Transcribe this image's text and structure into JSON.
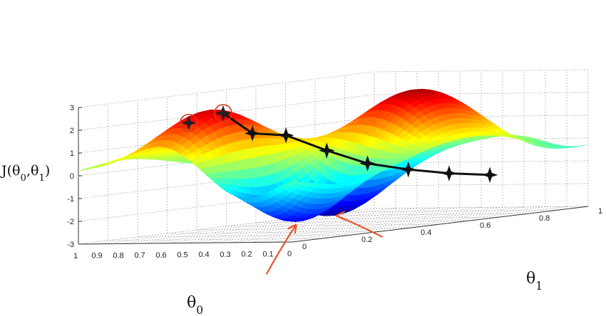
{
  "chart_data": {
    "type": "surface",
    "title": "",
    "zlabel": "J(θ0,θ1)",
    "xlabel": "θ0",
    "ylabel": "θ1",
    "zlim": [
      -3,
      3
    ],
    "z_ticks": [
      "-3",
      "-2",
      "-1",
      "0",
      "1",
      "2",
      "3"
    ],
    "theta0_ticks": [
      "1",
      "0.9",
      "0.8",
      "0.7",
      "0.6",
      "0.5",
      "0.4",
      "0.3",
      "0.2",
      "0.1",
      "0"
    ],
    "theta1_ticks": [
      "0",
      "0.2",
      "0.4",
      "0.6",
      "0.8",
      "1"
    ],
    "grid": true,
    "colormap": "jet",
    "descent_path": {
      "color": "#111111",
      "theta0": [
        0.6,
        0.56,
        0.5,
        0.42,
        0.34,
        0.26,
        0.18,
        0.1
      ],
      "theta1": [
        0.2,
        0.27,
        0.34,
        0.42,
        0.5,
        0.58,
        0.66,
        0.74
      ],
      "J": [
        2.4,
        1.4,
        1.2,
        0.4,
        -0.3,
        -0.7,
        -1.0,
        -1.2
      ]
    },
    "start_markers": {
      "color": "#d63a1a",
      "theta0": [
        0.65,
        0.6
      ],
      "theta1": [
        0.12,
        0.2
      ],
      "J": [
        2.1,
        2.4
      ]
    },
    "arrows_color": "#e8532b"
  }
}
